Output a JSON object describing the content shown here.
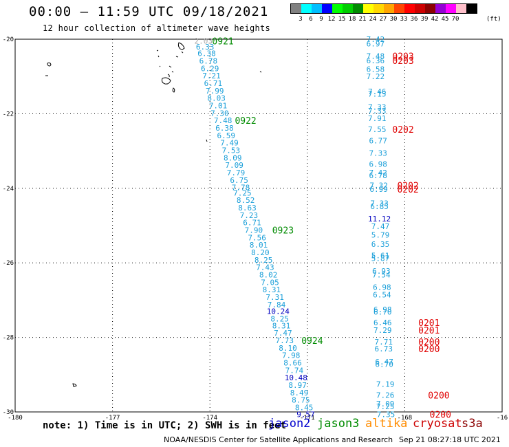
{
  "header": {
    "title": "00:00 – 11:59 UTC 09/18/2021",
    "subtitle": "12 hour collection of altimeter wave heights"
  },
  "legend": {
    "colors": [
      "#808080",
      "#00ffff",
      "#00bfff",
      "#0000ff",
      "#00ff00",
      "#00cd00",
      "#008b00",
      "#ffff00",
      "#ffd700",
      "#ffa500",
      "#ff4500",
      "#ff0000",
      "#cd0000",
      "#8b0000",
      "#9400d3",
      "#ff00ff",
      "#ffc0cb",
      "#000000"
    ],
    "labels": [
      "3",
      "6",
      "9",
      "12",
      "15",
      "18",
      "21",
      "24",
      "27",
      "30",
      "33",
      "36",
      "39",
      "42",
      "45",
      "70"
    ],
    "unit": "(ft)"
  },
  "axes": {
    "lon_labels": [
      "-180",
      "-177",
      "-174",
      "-171",
      "-168",
      "-16"
    ],
    "lat_labels": [
      "-20",
      "-22",
      "-24",
      "-26",
      "-28",
      "-30"
    ]
  },
  "chart_data": {
    "type": "scatter",
    "xlim": [
      -180,
      -165
    ],
    "ylim": [
      -30,
      -20
    ],
    "grid": true,
    "units": "ft",
    "tracks": [
      {
        "satellite": "jason3",
        "points": [
          {
            "lon": -174.2,
            "lat": -20.05,
            "v": "2.03",
            "c": "#aaaaaa"
          },
          {
            "lon": -174.15,
            "lat": -20.2,
            "v": "6.33",
            "c": "#1a9fd9"
          },
          {
            "lon": -174.1,
            "lat": -20.38,
            "v": "6.38",
            "c": "#1a9fd9"
          },
          {
            "lon": -174.05,
            "lat": -20.58,
            "v": "6.78",
            "c": "#1a9fd9"
          },
          {
            "lon": -174,
            "lat": -20.78,
            "v": "6.29",
            "c": "#1a9fd9"
          },
          {
            "lon": -173.95,
            "lat": -20.98,
            "v": "7.21",
            "c": "#1a9fd9"
          },
          {
            "lon": -173.9,
            "lat": -21.18,
            "v": "6.71",
            "c": "#1a9fd9"
          },
          {
            "lon": -173.85,
            "lat": -21.38,
            "v": "7.99",
            "c": "#1a9fd9"
          },
          {
            "lon": -173.8,
            "lat": -21.58,
            "v": "8.03",
            "c": "#1a9fd9"
          },
          {
            "lon": -173.75,
            "lat": -21.78,
            "v": "7.01",
            "c": "#1a9fd9"
          },
          {
            "lon": -173.7,
            "lat": -21.98,
            "v": "7.30",
            "c": "#1a9fd9"
          },
          {
            "lon": -173.6,
            "lat": -22.18,
            "v": "7.48",
            "c": "#1a9fd9"
          },
          {
            "lon": -173.55,
            "lat": -22.38,
            "v": "6.38",
            "c": "#1a9fd9"
          },
          {
            "lon": -173.5,
            "lat": -22.58,
            "v": "6.59",
            "c": "#1a9fd9"
          },
          {
            "lon": -173.4,
            "lat": -22.78,
            "v": "7.49",
            "c": "#1a9fd9"
          },
          {
            "lon": -173.35,
            "lat": -22.98,
            "v": "7.53",
            "c": "#1a9fd9"
          },
          {
            "lon": -173.3,
            "lat": -23.18,
            "v": "8.09",
            "c": "#1a9fd9"
          },
          {
            "lon": -173.25,
            "lat": -23.38,
            "v": "7.09",
            "c": "#1a9fd9"
          },
          {
            "lon": -173.2,
            "lat": -23.58,
            "v": "7.79",
            "c": "#1a9fd9"
          },
          {
            "lon": -173.1,
            "lat": -23.78,
            "v": "6.75",
            "c": "#1a9fd9"
          },
          {
            "lon": -173.05,
            "lat": -23.98,
            "v": "7.78",
            "c": "#1a9fd9"
          },
          {
            "lon": -173,
            "lat": -24.12,
            "v": "7.25",
            "c": "#1a9fd9"
          },
          {
            "lon": -172.9,
            "lat": -24.32,
            "v": "8.52",
            "c": "#1a9fd9"
          },
          {
            "lon": -172.85,
            "lat": -24.52,
            "v": "8.63",
            "c": "#1a9fd9"
          },
          {
            "lon": -172.8,
            "lat": -24.72,
            "v": "7.23",
            "c": "#1a9fd9"
          },
          {
            "lon": -172.7,
            "lat": -24.92,
            "v": "6.71",
            "c": "#1a9fd9"
          },
          {
            "lon": -172.65,
            "lat": -25.12,
            "v": "7.90",
            "c": "#1a9fd9"
          },
          {
            "lon": -172.55,
            "lat": -25.32,
            "v": "7.56",
            "c": "#1a9fd9"
          },
          {
            "lon": -172.5,
            "lat": -25.52,
            "v": "8.01",
            "c": "#1a9fd9"
          },
          {
            "lon": -172.45,
            "lat": -25.72,
            "v": "8.20",
            "c": "#1a9fd9"
          },
          {
            "lon": -172.35,
            "lat": -25.92,
            "v": "8.25",
            "c": "#1a9fd9"
          },
          {
            "lon": -172.3,
            "lat": -26.12,
            "v": "7.43",
            "c": "#1a9fd9"
          },
          {
            "lon": -172.2,
            "lat": -26.32,
            "v": "8.02",
            "c": "#1a9fd9"
          },
          {
            "lon": -172.15,
            "lat": -26.52,
            "v": "7.05",
            "c": "#1a9fd9"
          },
          {
            "lon": -172.1,
            "lat": -26.72,
            "v": "8.31",
            "c": "#1a9fd9"
          },
          {
            "lon": -172,
            "lat": -26.92,
            "v": "7.31",
            "c": "#1a9fd9"
          },
          {
            "lon": -171.95,
            "lat": -27.12,
            "v": "7.84",
            "c": "#1a9fd9"
          },
          {
            "lon": -171.9,
            "lat": -27.3,
            "v": "10.24",
            "c": "#0000c0"
          },
          {
            "lon": -171.85,
            "lat": -27.5,
            "v": "8.25",
            "c": "#1a9fd9"
          },
          {
            "lon": -171.8,
            "lat": -27.68,
            "v": "8.31",
            "c": "#1a9fd9"
          },
          {
            "lon": -171.75,
            "lat": -27.88,
            "v": "7.47",
            "c": "#1a9fd9"
          },
          {
            "lon": -171.7,
            "lat": -28.08,
            "v": "7.73",
            "c": "#1a9fd9"
          },
          {
            "lon": -171.6,
            "lat": -28.28,
            "v": "8.10",
            "c": "#1a9fd9"
          },
          {
            "lon": -171.5,
            "lat": -28.48,
            "v": "7.98",
            "c": "#1a9fd9"
          },
          {
            "lon": -171.45,
            "lat": -28.68,
            "v": "8.66",
            "c": "#1a9fd9"
          },
          {
            "lon": -171.4,
            "lat": -28.88,
            "v": "7.74",
            "c": "#1a9fd9"
          },
          {
            "lon": -171.35,
            "lat": -29.08,
            "v": "10.48",
            "c": "#0000c0"
          },
          {
            "lon": -171.3,
            "lat": -29.28,
            "v": "8.97",
            "c": "#1a9fd9"
          },
          {
            "lon": -171.25,
            "lat": -29.48,
            "v": "8.49",
            "c": "#1a9fd9"
          },
          {
            "lon": -171.2,
            "lat": -29.68,
            "v": "8.75",
            "c": "#1a9fd9"
          },
          {
            "lon": -171.1,
            "lat": -29.88,
            "v": "8.45",
            "c": "#1a9fd9"
          },
          {
            "lon": -171.05,
            "lat": -30.06,
            "v": "9.57",
            "c": "#0000c0"
          }
        ],
        "time_labels": [
          {
            "lon": -173.6,
            "lat": -20.05,
            "t": "0921"
          },
          {
            "lon": -172.9,
            "lat": -22.18,
            "t": "0922"
          },
          {
            "lon": -171.75,
            "lat": -25.12,
            "t": "0923"
          },
          {
            "lon": -170.85,
            "lat": -28.08,
            "t": "0924"
          }
        ]
      },
      {
        "satellite": "cryosat",
        "points": [
          {
            "lon": -168.9,
            "lat": -20.0,
            "v": "7.42",
            "c": "#1a9fd9"
          },
          {
            "lon": -168.9,
            "lat": -20.12,
            "v": "6.97",
            "c": "#1a9fd9"
          },
          {
            "lon": -168.9,
            "lat": -20.45,
            "v": "7.48",
            "c": "#1a9fd9"
          },
          {
            "lon": -168.9,
            "lat": -20.57,
            "v": "6.36",
            "c": "#1a9fd9"
          },
          {
            "lon": -168.9,
            "lat": -20.8,
            "v": "6.58",
            "c": "#1a9fd9"
          },
          {
            "lon": -168.9,
            "lat": -21.0,
            "v": "7.22",
            "c": "#1a9fd9"
          },
          {
            "lon": -168.85,
            "lat": -21.4,
            "v": "7.46",
            "c": "#1a9fd9"
          },
          {
            "lon": -168.85,
            "lat": -21.47,
            "v": "7.15",
            "c": "#1a9fd9"
          },
          {
            "lon": -168.85,
            "lat": -21.82,
            "v": "7.33",
            "c": "#1a9fd9"
          },
          {
            "lon": -168.85,
            "lat": -21.92,
            "v": "7.33",
            "c": "#1a9fd9"
          },
          {
            "lon": -168.85,
            "lat": -22.12,
            "v": "7.91",
            "c": "#1a9fd9"
          },
          {
            "lon": -168.85,
            "lat": -22.42,
            "v": "7.55",
            "c": "#1a9fd9"
          },
          {
            "lon": -168.82,
            "lat": -22.72,
            "v": "6.77",
            "c": "#1a9fd9"
          },
          {
            "lon": -168.82,
            "lat": -23.05,
            "v": "7.33",
            "c": "#1a9fd9"
          },
          {
            "lon": -168.82,
            "lat": -23.35,
            "v": "6.98",
            "c": "#1a9fd9"
          },
          {
            "lon": -168.82,
            "lat": -23.58,
            "v": "7.42",
            "c": "#1a9fd9"
          },
          {
            "lon": -168.82,
            "lat": -23.65,
            "v": "6.78",
            "c": "#1a9fd9"
          },
          {
            "lon": -168.8,
            "lat": -23.92,
            "v": "7.32",
            "c": "#1a9fd9"
          },
          {
            "lon": -168.8,
            "lat": -24.02,
            "v": "6.99",
            "c": "#1a9fd9"
          },
          {
            "lon": -168.78,
            "lat": -24.4,
            "v": "7.33",
            "c": "#1a9fd9"
          },
          {
            "lon": -168.78,
            "lat": -24.48,
            "v": "6.85",
            "c": "#1a9fd9"
          },
          {
            "lon": -168.78,
            "lat": -24.82,
            "v": "11.12",
            "c": "#0000c0"
          },
          {
            "lon": -168.75,
            "lat": -25.02,
            "v": "7.47",
            "c": "#1a9fd9"
          },
          {
            "lon": -168.75,
            "lat": -25.25,
            "v": "5.79",
            "c": "#1a9fd9"
          },
          {
            "lon": -168.75,
            "lat": -25.5,
            "v": "6.35",
            "c": "#1a9fd9"
          },
          {
            "lon": -168.75,
            "lat": -25.8,
            "v": "5.61",
            "c": "#1a9fd9"
          },
          {
            "lon": -168.75,
            "lat": -25.88,
            "v": "5.87",
            "c": "#1a9fd9"
          },
          {
            "lon": -168.72,
            "lat": -26.22,
            "v": "6.93",
            "c": "#1a9fd9"
          },
          {
            "lon": -168.72,
            "lat": -26.32,
            "v": "7.54",
            "c": "#1a9fd9"
          },
          {
            "lon": -168.7,
            "lat": -26.65,
            "v": "6.98",
            "c": "#1a9fd9"
          },
          {
            "lon": -168.7,
            "lat": -26.85,
            "v": "6.54",
            "c": "#1a9fd9"
          },
          {
            "lon": -168.68,
            "lat": -27.25,
            "v": "6.98",
            "c": "#1a9fd9"
          },
          {
            "lon": -168.68,
            "lat": -27.32,
            "v": "6.70",
            "c": "#1a9fd9"
          },
          {
            "lon": -168.68,
            "lat": -27.6,
            "v": "6.46",
            "c": "#1a9fd9"
          },
          {
            "lon": -168.68,
            "lat": -27.8,
            "v": "7.29",
            "c": "#1a9fd9"
          },
          {
            "lon": -168.65,
            "lat": -28.12,
            "v": "7.71",
            "c": "#1a9fd9"
          },
          {
            "lon": -168.65,
            "lat": -28.3,
            "v": "6.73",
            "c": "#1a9fd9"
          },
          {
            "lon": -168.63,
            "lat": -28.65,
            "v": "6.47",
            "c": "#1a9fd9"
          },
          {
            "lon": -168.63,
            "lat": -28.72,
            "v": "6.70",
            "c": "#1a9fd9"
          },
          {
            "lon": -168.6,
            "lat": -29.25,
            "v": "7.19",
            "c": "#1a9fd9"
          },
          {
            "lon": -168.6,
            "lat": -29.55,
            "v": "7.26",
            "c": "#1a9fd9"
          },
          {
            "lon": -168.6,
            "lat": -29.78,
            "v": "7.09",
            "c": "#1a9fd9"
          },
          {
            "lon": -168.6,
            "lat": -29.85,
            "v": "7.25",
            "c": "#1a9fd9"
          },
          {
            "lon": -168.58,
            "lat": -30.06,
            "v": "7.35",
            "c": "#1a9fd9"
          }
        ],
        "time_labels": [
          {
            "lon": -168.05,
            "lat": -20.45,
            "t": "0203"
          },
          {
            "lon": -168.05,
            "lat": -20.57,
            "t": "0203"
          },
          {
            "lon": -168.05,
            "lat": -22.42,
            "t": "0202"
          },
          {
            "lon": -167.9,
            "lat": -23.92,
            "t": "0202"
          },
          {
            "lon": -167.9,
            "lat": -24.02,
            "t": "0202"
          },
          {
            "lon": -167.25,
            "lat": -27.6,
            "t": "0201"
          },
          {
            "lon": -167.25,
            "lat": -27.8,
            "t": "0201"
          },
          {
            "lon": -167.25,
            "lat": -28.12,
            "t": "0200"
          },
          {
            "lon": -167.25,
            "lat": -28.3,
            "t": "0200"
          },
          {
            "lon": -166.95,
            "lat": -29.55,
            "t": "0200"
          },
          {
            "lon": -166.9,
            "lat": -30.06,
            "t": "0200"
          }
        ]
      }
    ]
  },
  "footer": {
    "note": "note: 1) Time is in UTC; 2) SWH is in feet",
    "satellites": [
      {
        "name": "jason2",
        "color": "#0000cd"
      },
      {
        "name": "jason3",
        "color": "#008b00"
      },
      {
        "name": "altika",
        "color": "#ff8c00"
      },
      {
        "name": "cryosat",
        "color": "#cd0000"
      },
      {
        "name": "s3a",
        "color": "#8b0000"
      }
    ],
    "credit": "NOAA/NESDIS Center for Satellite Applications and Research",
    "timestamp": "Sep 21 08:27:18 UTC 2021"
  }
}
